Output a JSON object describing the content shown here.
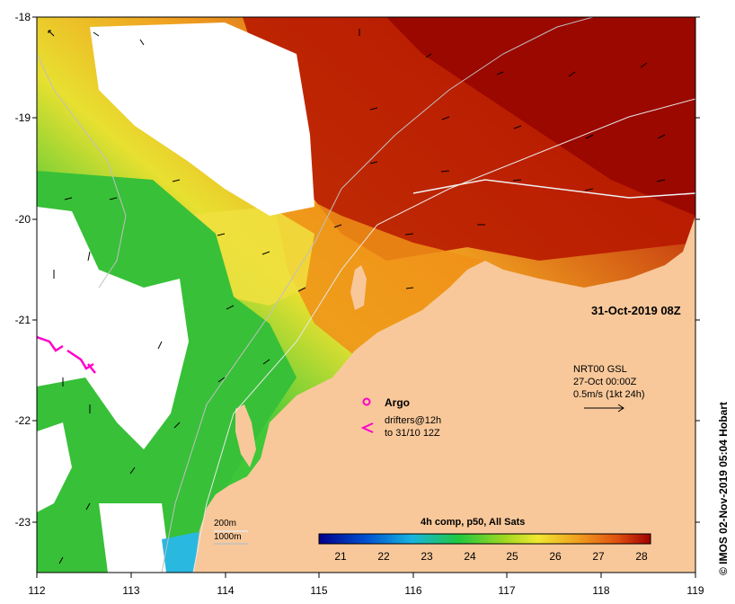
{
  "map": {
    "timestamp": "31-Oct-2019 08Z",
    "watermark": "© IMOS 02-Nov-2019 05:04 Hobart",
    "longitude_ticks": [
      "112",
      "113",
      "114",
      "115",
      "116",
      "117",
      "118",
      "119"
    ],
    "latitude_ticks": [
      "-18",
      "-19",
      "-20",
      "-21",
      "-22",
      "-23"
    ],
    "legend": {
      "argo_label": "Argo",
      "drifters_line1": "drifters@12h",
      "drifters_line2": "to 31/10 12Z",
      "current_product": "NRT00 GSL",
      "current_date": "27-Oct 00:00Z",
      "current_scale": "0.5m/s (1kt 24h)",
      "isobath_1": "200m",
      "isobath_2": "1000m"
    },
    "colorbar": {
      "title": "4h comp, p50, All Sats",
      "ticks": [
        "21",
        "22",
        "23",
        "24",
        "25",
        "26",
        "27",
        "28"
      ],
      "range": [
        20.5,
        28.3
      ]
    },
    "colors": {
      "land": "#f8c89a",
      "ocean_warm": "#a00a00",
      "ocean_cool": "#3ec83a",
      "drifter": "#ff00cc"
    }
  }
}
